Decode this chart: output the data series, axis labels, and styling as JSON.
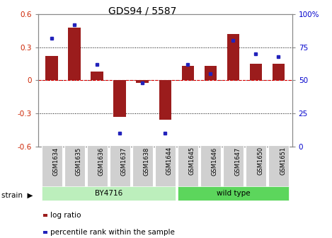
{
  "title": "GDS94 / 5587",
  "samples": [
    "GSM1634",
    "GSM1635",
    "GSM1636",
    "GSM1637",
    "GSM1638",
    "GSM1644",
    "GSM1645",
    "GSM1646",
    "GSM1647",
    "GSM1650",
    "GSM1651"
  ],
  "log_ratios": [
    0.22,
    0.48,
    0.08,
    -0.33,
    -0.02,
    -0.36,
    0.13,
    0.13,
    0.42,
    0.15,
    0.15
  ],
  "percentiles": [
    82,
    92,
    62,
    10,
    48,
    10,
    62,
    55,
    80,
    70,
    68
  ],
  "bar_color": "#9B1C1C",
  "dot_color": "#2222BB",
  "bg_color": "#FFFFFF",
  "plot_bg": "#FFFFFF",
  "zero_line_color": "#CC0000",
  "ylim": [
    -0.6,
    0.6
  ],
  "y2lim": [
    0,
    100
  ],
  "yticks": [
    -0.6,
    -0.3,
    0.0,
    0.3,
    0.6
  ],
  "y2ticks": [
    0,
    25,
    50,
    75,
    100
  ],
  "ytick_labels": [
    "-0.6",
    "-0.3",
    "0",
    "0.3",
    "0.6"
  ],
  "y2tick_labels": [
    "0",
    "25",
    "50",
    "75",
    "100%"
  ],
  "strain_groups": [
    {
      "label": "BY4716",
      "start": 0,
      "end": 5,
      "color": "#BCEFBC"
    },
    {
      "label": "wild type",
      "start": 6,
      "end": 10,
      "color": "#5CD65C"
    }
  ],
  "strain_label": "strain",
  "legend_log_label": "log ratio",
  "legend_pct_label": "percentile rank within the sample"
}
